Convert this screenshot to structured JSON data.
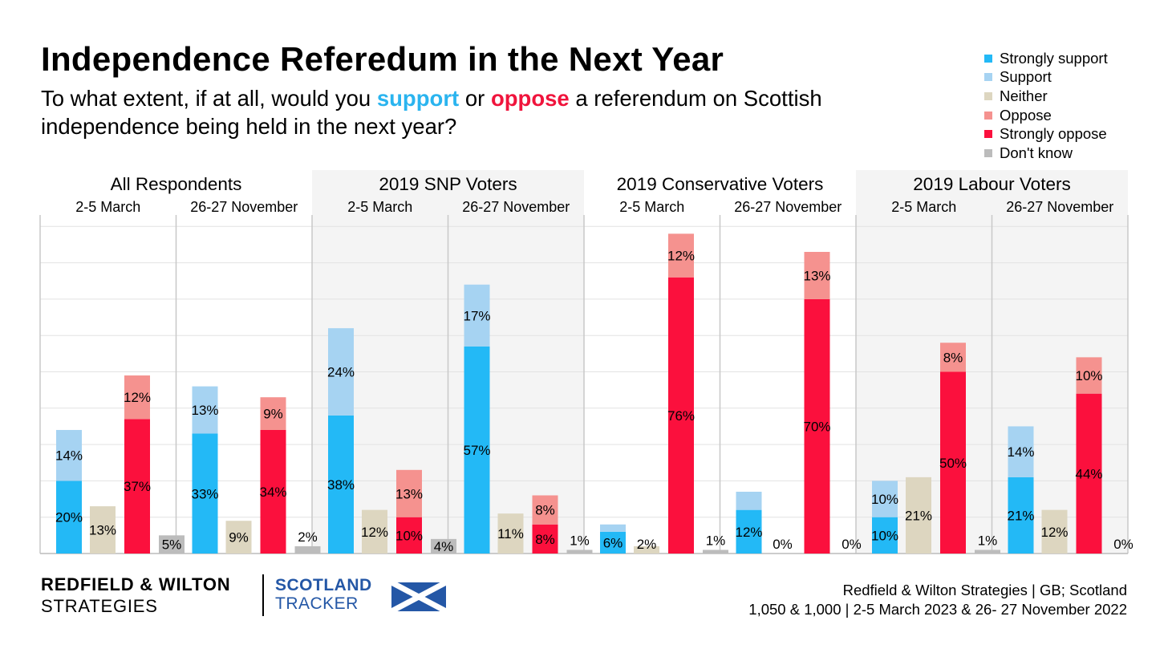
{
  "title": "Independence Referedum in the Next Year",
  "subtitle": {
    "part1": "To what extent, if at all, would you ",
    "support": "support",
    "part2": " or ",
    "oppose": "oppose",
    "part3": " a referendum on Scottish independence being held in the next year?"
  },
  "footer": {
    "brand_line1": "REDFIELD & WILTON",
    "brand_line2": "STRATEGIES",
    "tracker_line1": "SCOTLAND",
    "tracker_line2": "TRACKER",
    "source_line1": "Redfield & Wilton Strategies | GB; Scotland",
    "source_line2": "1,050 & 1,000 | 2-5 March 2023 & 26- 27 November 2022"
  },
  "colors": {
    "strongly_support": "#23b9f6",
    "support": "#a6d3f2",
    "neither": "#ddd6c0",
    "oppose": "#f5928f",
    "strongly_oppose": "#fb103d",
    "dont_know": "#bcbcbc",
    "panel_shade": "#f4f4f4",
    "brand_blue": "#2457a6",
    "support_text": "#2ab4ef",
    "oppose_text": "#f0143c"
  },
  "chart_data": {
    "type": "bar",
    "stacked_pairs": true,
    "ylim": [
      0,
      90
    ],
    "grid": true,
    "legend_position": "top-right",
    "legend": [
      {
        "key": "strongly_support",
        "label": "Strongly support"
      },
      {
        "key": "support",
        "label": "Support"
      },
      {
        "key": "neither",
        "label": "Neither"
      },
      {
        "key": "oppose",
        "label": "Oppose"
      },
      {
        "key": "strongly_oppose",
        "label": "Strongly oppose"
      },
      {
        "key": "dont_know",
        "label": "Don't know"
      }
    ],
    "groups": [
      {
        "name": "All Respondents",
        "periods": [
          {
            "label": "2-5 March",
            "strongly_support": 20,
            "support": 14,
            "neither": 13,
            "oppose": 12,
            "strongly_oppose": 37,
            "dont_know": 5
          },
          {
            "label": "26-27 November",
            "strongly_support": 33,
            "support": 13,
            "neither": 9,
            "oppose": 9,
            "strongly_oppose": 34,
            "dont_know": 2
          }
        ]
      },
      {
        "name": "2019 SNP Voters",
        "periods": [
          {
            "label": "2-5 March",
            "strongly_support": 38,
            "support": 24,
            "neither": 12,
            "oppose": 13,
            "strongly_oppose": 10,
            "dont_know": 4
          },
          {
            "label": "26-27 November",
            "strongly_support": 57,
            "support": 17,
            "neither": 11,
            "oppose": 8,
            "strongly_oppose": 8,
            "dont_know": 1
          }
        ]
      },
      {
        "name": "2019 Conservative Voters",
        "periods": [
          {
            "label": "2-5 March",
            "strongly_support": 6,
            "support": 2,
            "neither": 2,
            "oppose": 12,
            "strongly_oppose": 76,
            "dont_know": 1
          },
          {
            "label": "26-27 November",
            "strongly_support": 12,
            "support": 5,
            "neither": 0,
            "oppose": 13,
            "strongly_oppose": 70,
            "dont_know": 0
          }
        ]
      },
      {
        "name": "2019 Labour Voters",
        "periods": [
          {
            "label": "2-5 March",
            "strongly_support": 10,
            "support": 10,
            "neither": 21,
            "oppose": 8,
            "strongly_oppose": 50,
            "dont_know": 1
          },
          {
            "label": "26-27 November",
            "strongly_support": 21,
            "support": 14,
            "neither": 12,
            "oppose": 10,
            "strongly_oppose": 44,
            "dont_know": 0
          }
        ]
      }
    ]
  }
}
